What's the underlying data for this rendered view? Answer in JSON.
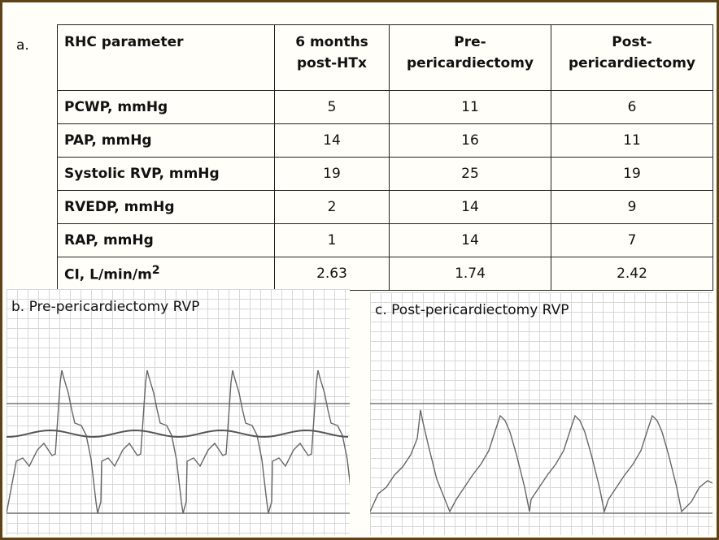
{
  "panel_a": {
    "label": "a.",
    "headers": [
      "RHC parameter",
      "6 months post-HTx",
      "Pre-pericardiectomy",
      "Post-pericardiectomy"
    ],
    "header_lines": [
      [
        "RHC parameter"
      ],
      [
        "6 months",
        "post-HTx"
      ],
      [
        "Pre-",
        "pericardiectomy"
      ],
      [
        "Post-",
        "pericardiectomy"
      ]
    ],
    "rows": [
      {
        "parameter": "PCWP, mmHg",
        "values": [
          "5",
          "11",
          "6"
        ]
      },
      {
        "parameter": "PAP, mmHg",
        "values": [
          "14",
          "16",
          "11"
        ]
      },
      {
        "parameter": "Systolic RVP, mmHg",
        "values": [
          "19",
          "25",
          "19"
        ]
      },
      {
        "parameter": "RVEDP, mmHg",
        "values": [
          "2",
          "14",
          "9"
        ]
      },
      {
        "parameter": "RAP, mmHg",
        "values": [
          "1",
          "14",
          "7"
        ]
      },
      {
        "parameter": "CI, L/min/m",
        "parameter_sup": "2",
        "values": [
          "2.63",
          "1.74",
          "2.42"
        ]
      }
    ]
  },
  "panel_b": {
    "title": "b. Pre-pericardiectomy RVP"
  },
  "panel_c": {
    "title": "c. Post-pericardiectomy RVP"
  },
  "colors": {
    "frame": "#5e4218",
    "trace": "#666666",
    "grid": "#d8d8d8"
  }
}
